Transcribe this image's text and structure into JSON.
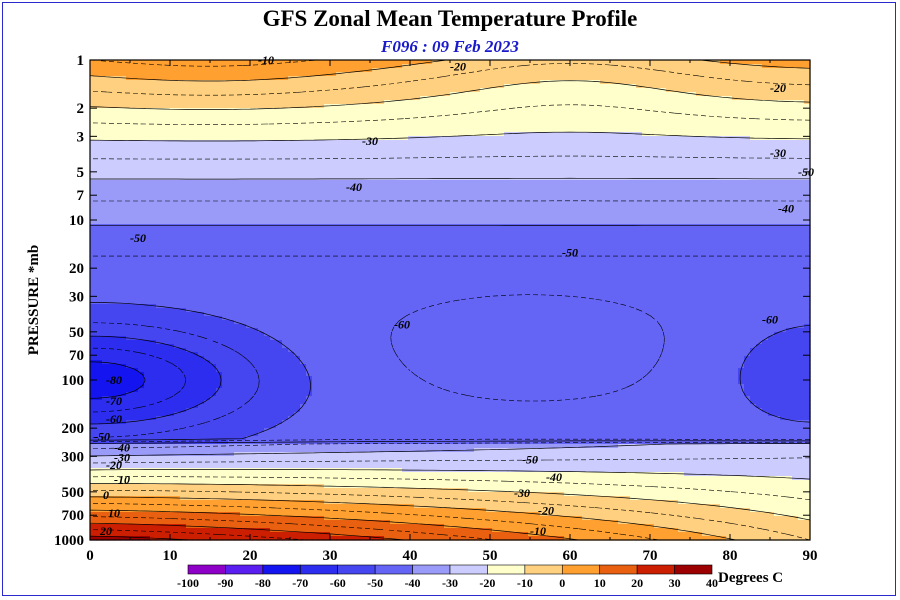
{
  "chart_data": {
    "type": "heatmap",
    "title": "GFS Zonal Mean Temperature Profile",
    "subtitle": "F096 : 09 Feb 2023",
    "ylabel": "PRESSURE *mb",
    "xlabel": "",
    "units_label": "Degrees C",
    "x_ticks": [
      0,
      10,
      20,
      30,
      40,
      50,
      60,
      70,
      80,
      90
    ],
    "xlim": [
      0,
      90
    ],
    "y_ticks": [
      1,
      2,
      3,
      5,
      7,
      10,
      20,
      30,
      50,
      70,
      100,
      200,
      300,
      500,
      700,
      1000
    ],
    "y_tick_labels": [
      "1",
      "2",
      "3",
      "5",
      "7",
      "10",
      "20",
      "30",
      "50",
      "70",
      "100",
      "200",
      "300",
      "500",
      "700",
      "1000"
    ],
    "ylim": [
      1000,
      1
    ],
    "y_scale": "log",
    "color_levels": [
      -100,
      -90,
      -80,
      -70,
      -60,
      -50,
      -40,
      -30,
      -20,
      -10,
      0,
      10,
      20,
      30,
      40
    ],
    "colors": [
      "#8e00c8",
      "#5a1ef0",
      "#1414f0",
      "#2d2df0",
      "#4646f0",
      "#6464f5",
      "#9a9af8",
      "#ccccff",
      "#ffffcc",
      "#ffd080",
      "#ffa030",
      "#e86010",
      "#cc1e00",
      "#9c0000",
      "#5c0000",
      "#8b6d2a"
    ],
    "contour_labels": [
      {
        "x": 22,
        "p": 1.0,
        "text": "-10"
      },
      {
        "x": 46,
        "p": 1.1,
        "text": "-20"
      },
      {
        "x": 86,
        "p": 1.5,
        "text": "-20"
      },
      {
        "x": 35,
        "p": 3.2,
        "text": "-30"
      },
      {
        "x": 86,
        "p": 3.8,
        "text": "-30"
      },
      {
        "x": 33,
        "p": 6.2,
        "text": "-40"
      },
      {
        "x": 87,
        "p": 8.5,
        "text": "-40"
      },
      {
        "x": 89.5,
        "p": 5.0,
        "text": "-50"
      },
      {
        "x": 6,
        "p": 13,
        "text": "-50"
      },
      {
        "x": 60,
        "p": 16,
        "text": "-50"
      },
      {
        "x": 39,
        "p": 45,
        "text": "-60"
      },
      {
        "x": 85,
        "p": 42,
        "text": "-60"
      },
      {
        "x": 3,
        "p": 100,
        "text": "-80"
      },
      {
        "x": 3,
        "p": 135,
        "text": "-70"
      },
      {
        "x": 3,
        "p": 175,
        "text": "-60"
      },
      {
        "x": 1.5,
        "p": 225,
        "text": "-50"
      },
      {
        "x": 4,
        "p": 265,
        "text": "-40"
      },
      {
        "x": 4,
        "p": 305,
        "text": "-30"
      },
      {
        "x": 3,
        "p": 340,
        "text": "-20"
      },
      {
        "x": 4,
        "p": 420,
        "text": "-10"
      },
      {
        "x": 2,
        "p": 525,
        "text": "0"
      },
      {
        "x": 3,
        "p": 680,
        "text": "10"
      },
      {
        "x": 2,
        "p": 880,
        "text": "20"
      },
      {
        "x": 55,
        "p": 315,
        "text": "-50"
      },
      {
        "x": 58,
        "p": 405,
        "text": "-40"
      },
      {
        "x": 54,
        "p": 510,
        "text": "-30"
      },
      {
        "x": 57,
        "p": 655,
        "text": "-20"
      },
      {
        "x": 56,
        "p": 880,
        "text": "-10"
      }
    ]
  }
}
